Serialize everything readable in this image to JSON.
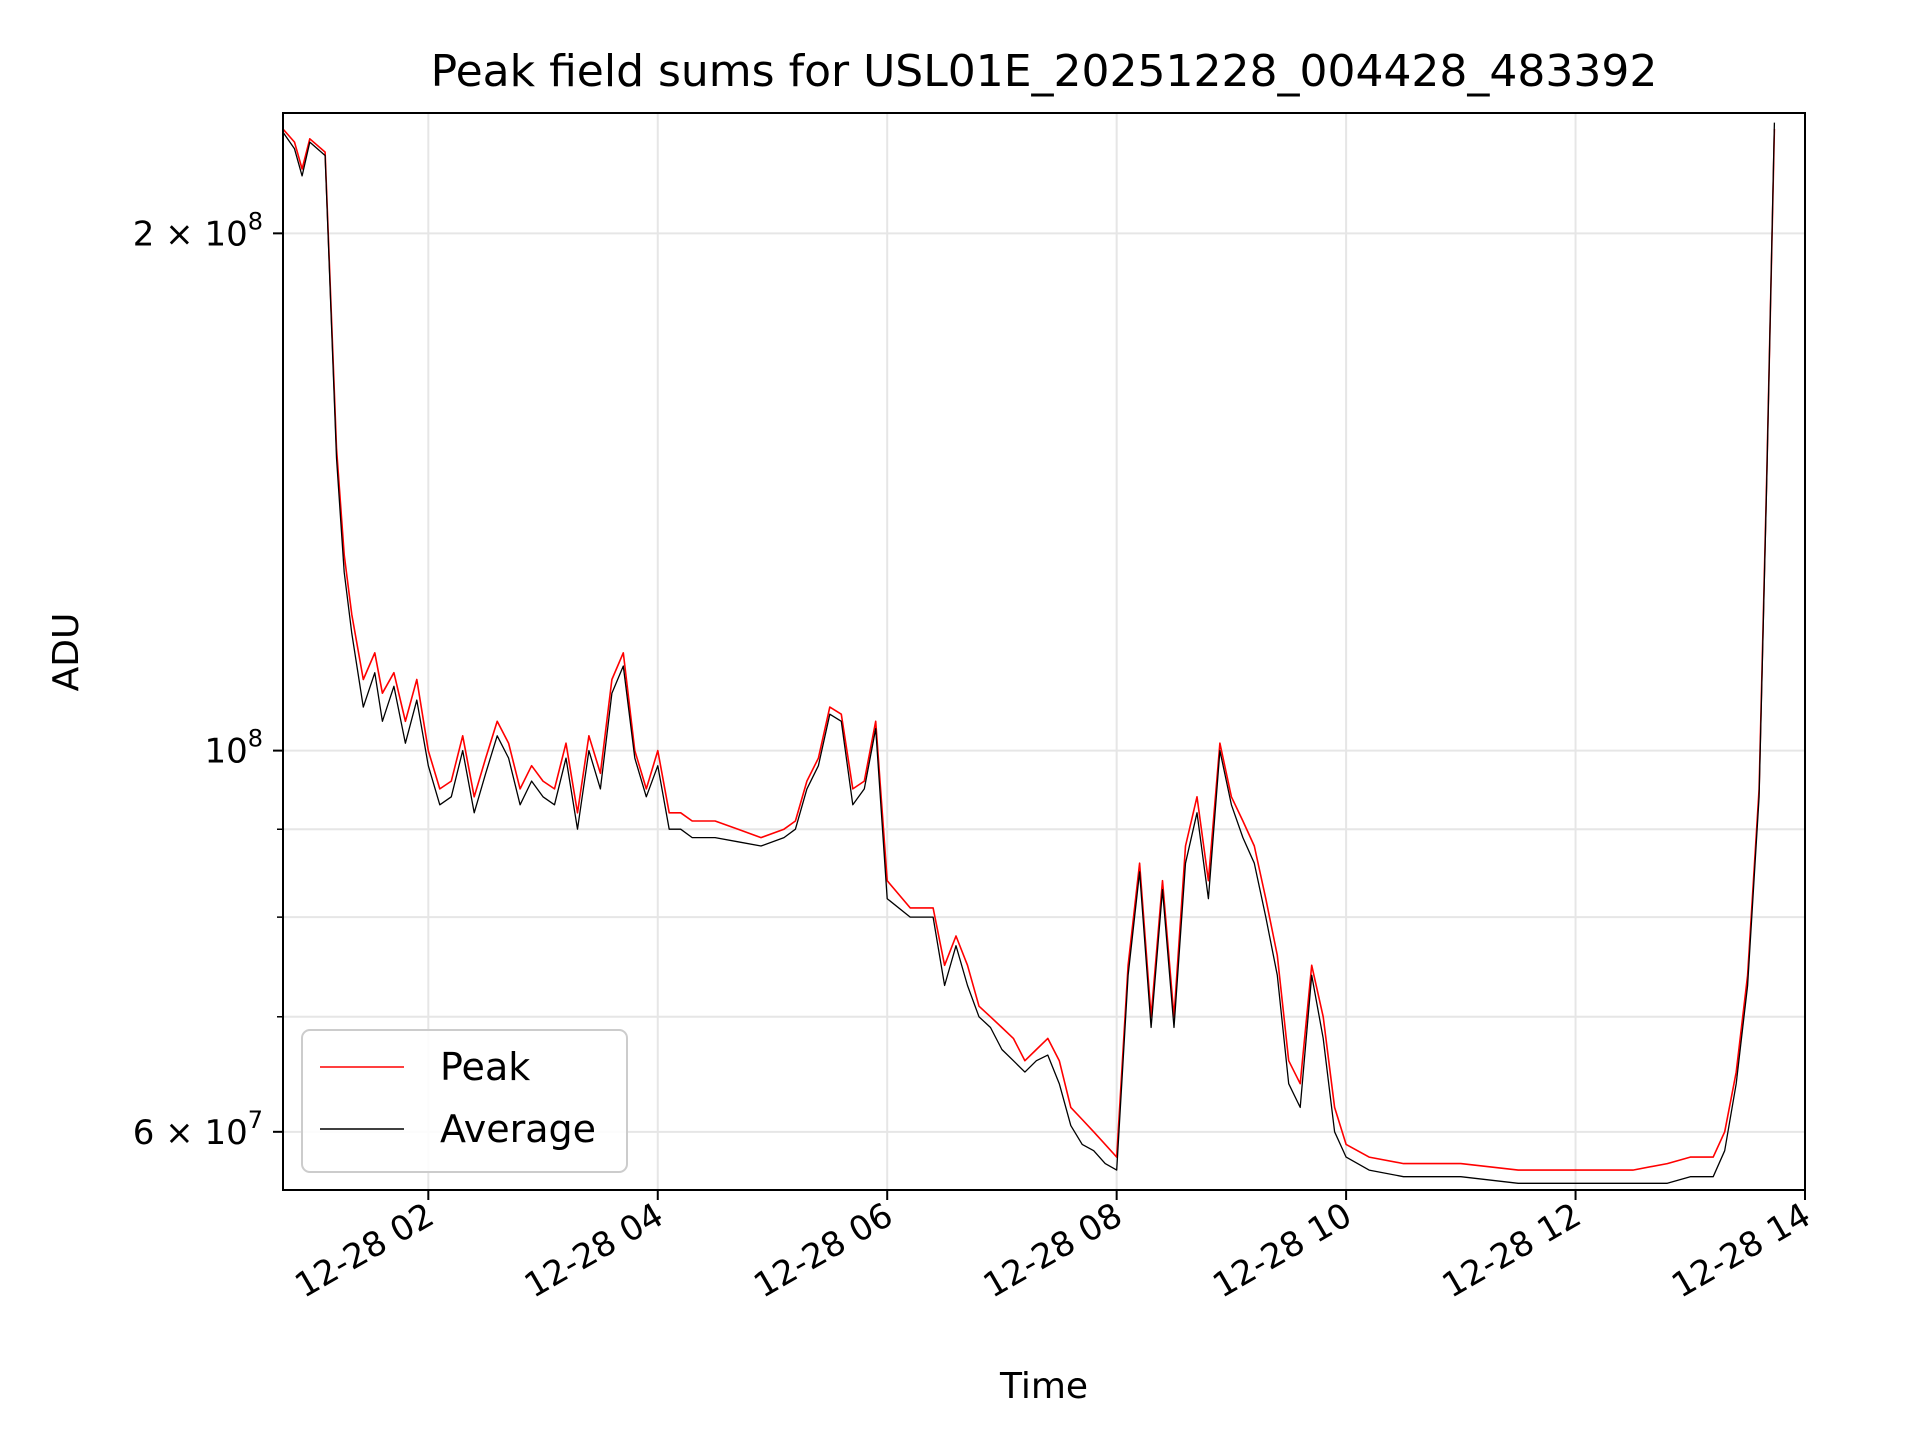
{
  "chart_data": {
    "type": "line",
    "title": "Peak field sums for USL01E_20251228_004428_483392",
    "xlabel": "Time",
    "ylabel": "ADU",
    "yscale": "log",
    "xlim": [
      "2025-12-28 00:44",
      "2025-12-28 14:00"
    ],
    "ylim": [
      55500000,
      235000000
    ],
    "grid": true,
    "legend_position": "lower-left",
    "x_ticks": [
      {
        "value": "2025-12-28 02:00",
        "label": "12-28 02"
      },
      {
        "value": "2025-12-28 04:00",
        "label": "12-28 04"
      },
      {
        "value": "2025-12-28 06:00",
        "label": "12-28 06"
      },
      {
        "value": "2025-12-28 08:00",
        "label": "12-28 08"
      },
      {
        "value": "2025-12-28 10:00",
        "label": "12-28 10"
      },
      {
        "value": "2025-12-28 12:00",
        "label": "12-28 12"
      },
      {
        "value": "2025-12-28 14:00",
        "label": "12-28 14"
      }
    ],
    "y_major_ticks": [
      {
        "value": 60000000,
        "base": "6",
        "exp": "7"
      },
      {
        "value": 100000000,
        "base": "",
        "exp": "8"
      },
      {
        "value": 200000000,
        "base": "2",
        "exp": "8"
      }
    ],
    "y_minor_ticks": [
      70000000,
      80000000,
      90000000
    ],
    "series": [
      {
        "name": "Peak",
        "color": "#ff0000",
        "x": [
          "2025-12-28 00:44",
          "2025-12-28 00:50",
          "2025-12-28 00:54",
          "2025-12-28 00:58",
          "2025-12-28 01:06",
          "2025-12-28 01:12",
          "2025-12-28 01:16",
          "2025-12-28 01:20",
          "2025-12-28 01:26",
          "2025-12-28 01:32",
          "2025-12-28 01:36",
          "2025-12-28 01:42",
          "2025-12-28 01:48",
          "2025-12-28 01:54",
          "2025-12-28 02:00",
          "2025-12-28 02:06",
          "2025-12-28 02:12",
          "2025-12-28 02:18",
          "2025-12-28 02:24",
          "2025-12-28 02:30",
          "2025-12-28 02:36",
          "2025-12-28 02:42",
          "2025-12-28 02:48",
          "2025-12-28 02:54",
          "2025-12-28 03:00",
          "2025-12-28 03:06",
          "2025-12-28 03:12",
          "2025-12-28 03:18",
          "2025-12-28 03:24",
          "2025-12-28 03:30",
          "2025-12-28 03:36",
          "2025-12-28 03:42",
          "2025-12-28 03:48",
          "2025-12-28 03:54",
          "2025-12-28 04:00",
          "2025-12-28 04:06",
          "2025-12-28 04:12",
          "2025-12-28 04:18",
          "2025-12-28 04:30",
          "2025-12-28 04:42",
          "2025-12-28 04:54",
          "2025-12-28 05:06",
          "2025-12-28 05:12",
          "2025-12-28 05:18",
          "2025-12-28 05:24",
          "2025-12-28 05:30",
          "2025-12-28 05:36",
          "2025-12-28 05:42",
          "2025-12-28 05:48",
          "2025-12-28 05:54",
          "2025-12-28 06:00",
          "2025-12-28 06:12",
          "2025-12-28 06:24",
          "2025-12-28 06:30",
          "2025-12-28 06:36",
          "2025-12-28 06:42",
          "2025-12-28 06:48",
          "2025-12-28 06:54",
          "2025-12-28 07:00",
          "2025-12-28 07:06",
          "2025-12-28 07:12",
          "2025-12-28 07:18",
          "2025-12-28 07:24",
          "2025-12-28 07:30",
          "2025-12-28 07:36",
          "2025-12-28 07:42",
          "2025-12-28 07:48",
          "2025-12-28 07:54",
          "2025-12-28 08:00",
          "2025-12-28 08:06",
          "2025-12-28 08:12",
          "2025-12-28 08:18",
          "2025-12-28 08:24",
          "2025-12-28 08:30",
          "2025-12-28 08:36",
          "2025-12-28 08:42",
          "2025-12-28 08:48",
          "2025-12-28 08:54",
          "2025-12-28 09:00",
          "2025-12-28 09:06",
          "2025-12-28 09:12",
          "2025-12-28 09:18",
          "2025-12-28 09:24",
          "2025-12-28 09:30",
          "2025-12-28 09:36",
          "2025-12-28 09:42",
          "2025-12-28 09:48",
          "2025-12-28 09:54",
          "2025-12-28 10:00",
          "2025-12-28 10:12",
          "2025-12-28 10:30",
          "2025-12-28 11:00",
          "2025-12-28 11:30",
          "2025-12-28 12:00",
          "2025-12-28 12:30",
          "2025-12-28 12:48",
          "2025-12-28 13:00",
          "2025-12-28 13:06",
          "2025-12-28 13:12",
          "2025-12-28 13:18",
          "2025-12-28 13:24",
          "2025-12-28 13:30",
          "2025-12-28 13:36",
          "2025-12-28 13:40",
          "2025-12-28 13:44"
        ],
        "y": [
          230000000,
          226000000,
          218000000,
          227000000,
          223000000,
          150000000,
          130000000,
          120000000,
          110000000,
          114000000,
          108000000,
          111000000,
          104000000,
          110000000,
          100000000,
          95000000,
          96000000,
          102000000,
          94000000,
          99000000,
          104000000,
          101000000,
          95000000,
          98000000,
          96000000,
          95000000,
          101000000,
          92000000,
          102000000,
          97000000,
          110000000,
          114000000,
          100000000,
          95000000,
          100000000,
          92000000,
          92000000,
          91000000,
          91000000,
          90000000,
          89000000,
          90000000,
          91000000,
          96000000,
          99000000,
          106000000,
          105000000,
          95000000,
          96000000,
          104000000,
          84000000,
          81000000,
          81000000,
          75000000,
          78000000,
          75000000,
          71000000,
          70000000,
          69000000,
          68000000,
          66000000,
          67000000,
          68000000,
          66000000,
          62000000,
          61000000,
          60000000,
          59000000,
          58000000,
          75000000,
          86000000,
          70000000,
          84000000,
          70000000,
          88000000,
          94000000,
          84000000,
          101000000,
          94000000,
          91000000,
          88000000,
          82000000,
          76000000,
          66000000,
          64000000,
          75000000,
          70000000,
          62000000,
          59000000,
          58000000,
          57500000,
          57500000,
          57000000,
          57000000,
          57000000,
          57500000,
          58000000,
          58000000,
          58000000,
          60000000,
          65000000,
          74000000,
          95000000,
          145000000,
          230000000
        ]
      },
      {
        "name": "Average",
        "color": "#000000",
        "x": [
          "2025-12-28 00:44",
          "2025-12-28 00:50",
          "2025-12-28 00:54",
          "2025-12-28 00:58",
          "2025-12-28 01:06",
          "2025-12-28 01:12",
          "2025-12-28 01:16",
          "2025-12-28 01:20",
          "2025-12-28 01:26",
          "2025-12-28 01:32",
          "2025-12-28 01:36",
          "2025-12-28 01:42",
          "2025-12-28 01:48",
          "2025-12-28 01:54",
          "2025-12-28 02:00",
          "2025-12-28 02:06",
          "2025-12-28 02:12",
          "2025-12-28 02:18",
          "2025-12-28 02:24",
          "2025-12-28 02:30",
          "2025-12-28 02:36",
          "2025-12-28 02:42",
          "2025-12-28 02:48",
          "2025-12-28 02:54",
          "2025-12-28 03:00",
          "2025-12-28 03:06",
          "2025-12-28 03:12",
          "2025-12-28 03:18",
          "2025-12-28 03:24",
          "2025-12-28 03:30",
          "2025-12-28 03:36",
          "2025-12-28 03:42",
          "2025-12-28 03:48",
          "2025-12-28 03:54",
          "2025-12-28 04:00",
          "2025-12-28 04:06",
          "2025-12-28 04:12",
          "2025-12-28 04:18",
          "2025-12-28 04:30",
          "2025-12-28 04:42",
          "2025-12-28 04:54",
          "2025-12-28 05:06",
          "2025-12-28 05:12",
          "2025-12-28 05:18",
          "2025-12-28 05:24",
          "2025-12-28 05:30",
          "2025-12-28 05:36",
          "2025-12-28 05:42",
          "2025-12-28 05:48",
          "2025-12-28 05:54",
          "2025-12-28 06:00",
          "2025-12-28 06:12",
          "2025-12-28 06:24",
          "2025-12-28 06:30",
          "2025-12-28 06:36",
          "2025-12-28 06:42",
          "2025-12-28 06:48",
          "2025-12-28 06:54",
          "2025-12-28 07:00",
          "2025-12-28 07:06",
          "2025-12-28 07:12",
          "2025-12-28 07:18",
          "2025-12-28 07:24",
          "2025-12-28 07:30",
          "2025-12-28 07:36",
          "2025-12-28 07:42",
          "2025-12-28 07:48",
          "2025-12-28 07:54",
          "2025-12-28 08:00",
          "2025-12-28 08:06",
          "2025-12-28 08:12",
          "2025-12-28 08:18",
          "2025-12-28 08:24",
          "2025-12-28 08:30",
          "2025-12-28 08:36",
          "2025-12-28 08:42",
          "2025-12-28 08:48",
          "2025-12-28 08:54",
          "2025-12-28 09:00",
          "2025-12-28 09:06",
          "2025-12-28 09:12",
          "2025-12-28 09:18",
          "2025-12-28 09:24",
          "2025-12-28 09:30",
          "2025-12-28 09:36",
          "2025-12-28 09:42",
          "2025-12-28 09:48",
          "2025-12-28 09:54",
          "2025-12-28 10:00",
          "2025-12-28 10:12",
          "2025-12-28 10:30",
          "2025-12-28 11:00",
          "2025-12-28 11:30",
          "2025-12-28 12:00",
          "2025-12-28 12:30",
          "2025-12-28 12:48",
          "2025-12-28 13:00",
          "2025-12-28 13:06",
          "2025-12-28 13:12",
          "2025-12-28 13:18",
          "2025-12-28 13:24",
          "2025-12-28 13:30",
          "2025-12-28 13:36",
          "2025-12-28 13:40",
          "2025-12-28 13:44"
        ],
        "y": [
          229000000,
          224000000,
          216000000,
          226000000,
          222000000,
          148000000,
          127000000,
          117000000,
          106000000,
          111000000,
          104000000,
          109000000,
          101000000,
          107000000,
          98000000,
          93000000,
          94000000,
          100000000,
          92000000,
          97000000,
          102000000,
          99000000,
          93000000,
          96000000,
          94000000,
          93000000,
          99000000,
          90000000,
          100000000,
          95000000,
          108000000,
          112000000,
          99000000,
          94000000,
          98000000,
          90000000,
          90000000,
          89000000,
          89000000,
          88500000,
          88000000,
          89000000,
          90000000,
          95000000,
          98000000,
          105000000,
          104000000,
          93000000,
          95000000,
          103000000,
          82000000,
          80000000,
          80000000,
          73000000,
          77000000,
          73000000,
          70000000,
          69000000,
          67000000,
          66000000,
          65000000,
          66000000,
          66500000,
          64000000,
          60500000,
          59000000,
          58500000,
          57500000,
          57000000,
          74000000,
          85000000,
          69000000,
          83000000,
          69000000,
          86000000,
          92000000,
          82000000,
          100000000,
          93000000,
          89000000,
          86000000,
          80000000,
          74000000,
          64000000,
          62000000,
          74000000,
          68000000,
          60000000,
          58000000,
          57000000,
          56500000,
          56500000,
          56000000,
          56000000,
          56000000,
          56000000,
          56500000,
          56500000,
          56500000,
          58500000,
          64000000,
          73000000,
          94000000,
          144000000,
          232000000
        ]
      }
    ]
  }
}
